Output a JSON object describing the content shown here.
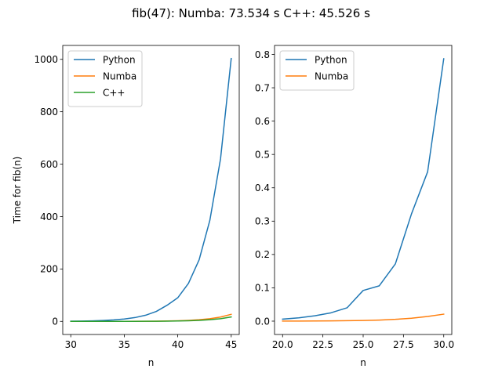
{
  "suptitle": "fib(47):   Numba: 73.534 s     C++: 45.526 s",
  "chart_data": [
    {
      "type": "line",
      "xlabel": "n",
      "ylabel": "Time for fib(n)",
      "xlim": [
        29.25,
        45.75
      ],
      "ylim": [
        -50,
        1053
      ],
      "xticks": [
        30,
        35,
        40,
        45
      ],
      "xtick_labels": [
        "30",
        "35",
        "40",
        "45"
      ],
      "yticks": [
        0,
        200,
        400,
        600,
        800,
        1000
      ],
      "ytick_labels": [
        "0",
        "200",
        "400",
        "600",
        "800",
        "1000"
      ],
      "grid": false,
      "legend": "top-left",
      "series": [
        {
          "name": "Python",
          "color": "#1f77b4",
          "x": [
            30,
            31,
            32,
            33,
            34,
            35,
            36,
            37,
            38,
            39,
            40,
            41,
            42,
            43,
            44,
            45
          ],
          "y": [
            0.8,
            1.3,
            2.1,
            3.4,
            5.5,
            8.9,
            14.5,
            23.5,
            38,
            61.5,
            90,
            145,
            235,
            385,
            620,
            1003
          ]
        },
        {
          "name": "Numba",
          "color": "#ff7f0e",
          "x": [
            30,
            31,
            32,
            33,
            34,
            35,
            36,
            37,
            38,
            39,
            40,
            41,
            42,
            43,
            44,
            45
          ],
          "y": [
            0.02,
            0.03,
            0.05,
            0.08,
            0.13,
            0.21,
            0.35,
            0.56,
            0.9,
            1.5,
            2.4,
            3.9,
            6.3,
            10.2,
            16.5,
            27
          ]
        },
        {
          "name": "C++",
          "color": "#2ca02c",
          "x": [
            30,
            31,
            32,
            33,
            34,
            35,
            36,
            37,
            38,
            39,
            40,
            41,
            42,
            43,
            44,
            45
          ],
          "y": [
            0.01,
            0.02,
            0.03,
            0.05,
            0.08,
            0.13,
            0.21,
            0.35,
            0.56,
            0.9,
            1.5,
            2.4,
            3.9,
            6.3,
            10.2,
            17
          ]
        }
      ]
    },
    {
      "type": "line",
      "xlabel": "n",
      "ylabel": "",
      "xlim": [
        19.5,
        30.5
      ],
      "ylim": [
        -0.04,
        0.827
      ],
      "xticks": [
        20,
        22.5,
        25,
        27.5,
        30
      ],
      "xtick_labels": [
        "20.0",
        "22.5",
        "25.0",
        "27.5",
        "30.0"
      ],
      "yticks": [
        0,
        0.1,
        0.2,
        0.3,
        0.4,
        0.5,
        0.6,
        0.7,
        0.8
      ],
      "ytick_labels": [
        "0.0",
        "0.1",
        "0.2",
        "0.3",
        "0.4",
        "0.5",
        "0.6",
        "0.7",
        "0.8"
      ],
      "grid": false,
      "legend": "top-left",
      "series": [
        {
          "name": "Python",
          "color": "#1f77b4",
          "x": [
            20,
            21,
            22,
            23,
            24,
            25,
            26,
            27,
            28,
            29,
            30
          ],
          "y": [
            0.006,
            0.01,
            0.016,
            0.025,
            0.04,
            0.092,
            0.106,
            0.172,
            0.322,
            0.448,
            0.787
          ]
        },
        {
          "name": "Numba",
          "color": "#ff7f0e",
          "x": [
            20,
            21,
            22,
            23,
            24,
            25,
            26,
            27,
            28,
            29,
            30
          ],
          "y": [
            0.0002,
            0.0003,
            0.0005,
            0.0008,
            0.0013,
            0.002,
            0.0033,
            0.0054,
            0.0087,
            0.014,
            0.021
          ]
        }
      ]
    }
  ]
}
